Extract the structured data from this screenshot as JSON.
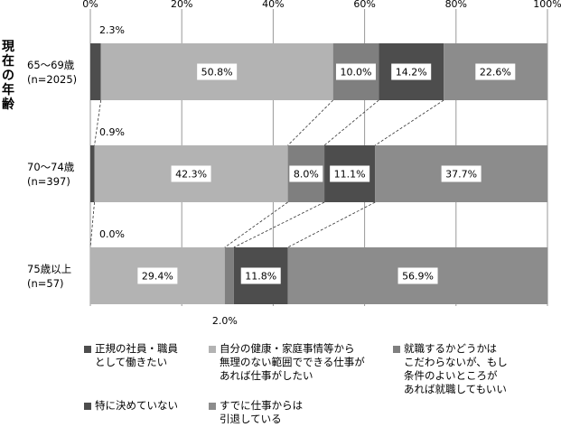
{
  "chart_data": {
    "type": "bar",
    "orientation": "horizontal",
    "stacked": "percent",
    "ylabel_chars": [
      "現",
      "在",
      "の",
      "年",
      "齢"
    ],
    "categories": [
      {
        "name": "65～69歳",
        "n": "(n=2025)"
      },
      {
        "name": "70～74歳",
        "n": "(n=397)"
      },
      {
        "name": "75歳以上",
        "n": "(n=57)"
      }
    ],
    "xticks": [
      "0%",
      "20%",
      "40%",
      "60%",
      "80%",
      "100%"
    ],
    "xlim": [
      0,
      100
    ],
    "series": [
      {
        "name": "正規の社員・職員\nとして働きたい",
        "color": "#4d4d4d",
        "values": [
          2.3,
          0.9,
          0.0
        ]
      },
      {
        "name": "自分の健康・家庭事情等から\n無理のない範囲でできる仕事が\nあれば仕事がしたい",
        "color": "#b3b3b3",
        "values": [
          50.8,
          42.3,
          29.4
        ]
      },
      {
        "name": "就職するかどうかは\nこだわらないが、もし\n条件のよいところが\nあれば就職してもいい",
        "color": "#7f7f7f",
        "values": [
          10.0,
          8.0,
          2.0
        ]
      },
      {
        "name": "特に決めていない",
        "color": "#4d4d4d",
        "values": [
          14.2,
          11.1,
          11.8
        ]
      },
      {
        "name": "すでに仕事からは\n引退している",
        "color": "#8c8c8c",
        "values": [
          22.6,
          37.7,
          56.9
        ]
      }
    ],
    "labels": [
      [
        "2.3%",
        "50.8%",
        "10.0%",
        "14.2%",
        "22.6%"
      ],
      [
        "0.9%",
        "42.3%",
        "8.0%",
        "11.1%",
        "37.7%"
      ],
      [
        "0.0%",
        "29.4%",
        "2.0%",
        "11.8%",
        "56.9%"
      ]
    ],
    "legend_position": "bottom",
    "grid": true
  }
}
